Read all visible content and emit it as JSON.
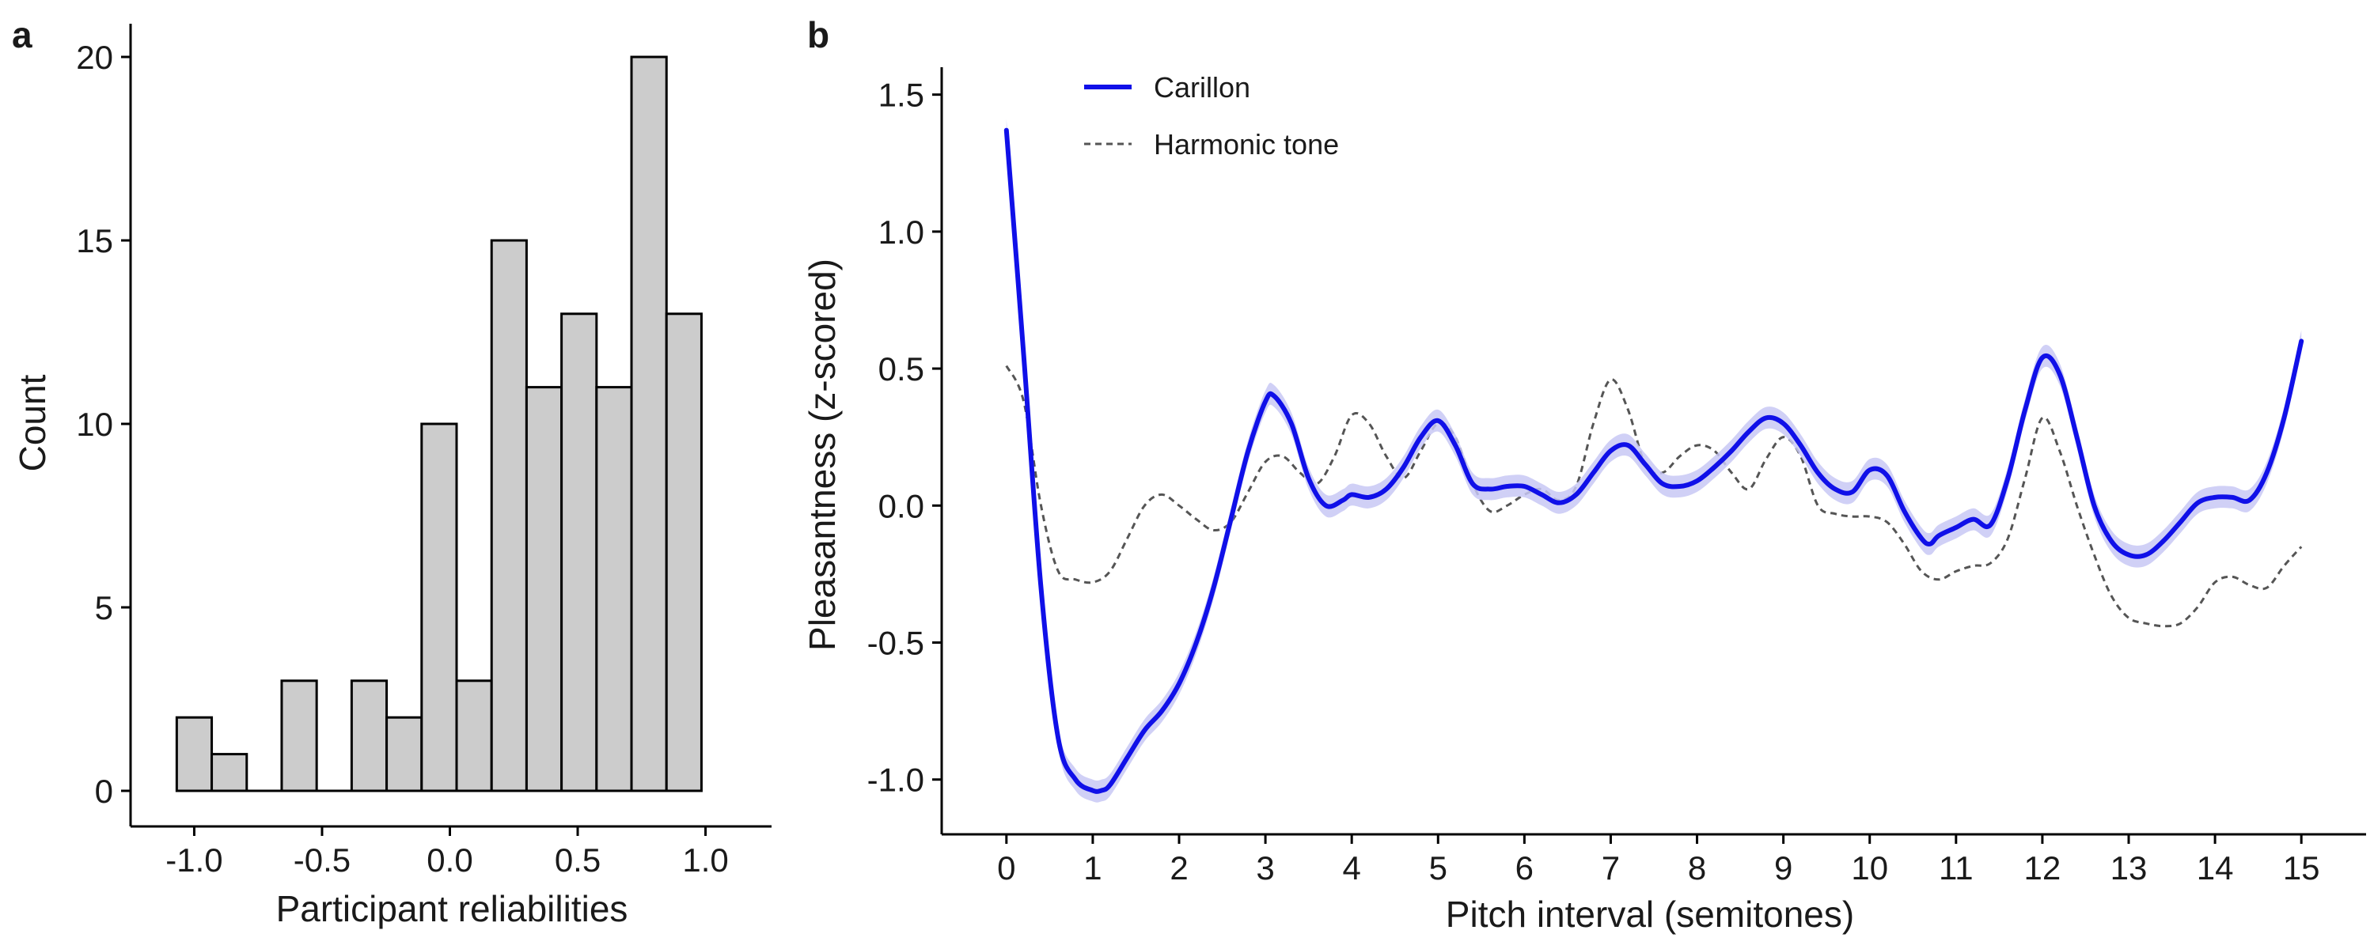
{
  "panel_a": {
    "panel_letter": "a"
  },
  "panel_b": {
    "panel_letter": "b"
  },
  "chart_data": [
    {
      "type": "bar",
      "xlabel": "Participant reliabilities",
      "ylabel": "Count",
      "xlim": [
        -1.15,
        1.15
      ],
      "ylim": [
        0,
        20
      ],
      "xticks": [
        "-1.0",
        "-0.5",
        "0.0",
        "0.5",
        "1.0"
      ],
      "yticks": [
        "0",
        "5",
        "10",
        "15",
        "20"
      ],
      "bin_width": 0.1368,
      "bins": [
        {
          "x_start": -1.0684,
          "x_end": -0.9316,
          "count": 2
        },
        {
          "x_start": -0.9316,
          "x_end": -0.7947,
          "count": 1
        },
        {
          "x_start": -0.7947,
          "x_end": -0.6579,
          "count": 0
        },
        {
          "x_start": -0.6579,
          "x_end": -0.5211,
          "count": 3
        },
        {
          "x_start": -0.5211,
          "x_end": -0.3842,
          "count": 0
        },
        {
          "x_start": -0.3842,
          "x_end": -0.2474,
          "count": 3
        },
        {
          "x_start": -0.2474,
          "x_end": -0.1105,
          "count": 2
        },
        {
          "x_start": -0.1105,
          "x_end": 0.0263,
          "count": 10
        },
        {
          "x_start": 0.0263,
          "x_end": 0.1632,
          "count": 3
        },
        {
          "x_start": 0.1632,
          "x_end": 0.3,
          "count": 15
        },
        {
          "x_start": 0.3,
          "x_end": 0.4368,
          "count": 11
        },
        {
          "x_start": 0.4368,
          "x_end": 0.5737,
          "count": 13
        },
        {
          "x_start": 0.5737,
          "x_end": 0.7105,
          "count": 11
        },
        {
          "x_start": 0.7105,
          "x_end": 0.8474,
          "count": 20
        },
        {
          "x_start": 0.8474,
          "x_end": 0.9842,
          "count": 13
        }
      ],
      "bar_fill": "#cccccc",
      "bar_stroke": "#000000",
      "grid": false
    },
    {
      "type": "line",
      "xlabel": "Pitch interval (semitones)",
      "ylabel": "Pleasantness (z-scored)",
      "xlim": [
        -0.75,
        15.75
      ],
      "ylim": [
        -1.2,
        1.6
      ],
      "xticks": [
        "0",
        "1",
        "2",
        "3",
        "4",
        "5",
        "6",
        "7",
        "8",
        "9",
        "10",
        "11",
        "12",
        "13",
        "14",
        "15"
      ],
      "yticks": [
        "-1.0",
        "-0.5",
        "0.0",
        "0.5",
        "1.0",
        "1.5"
      ],
      "legend_position": "top-left",
      "grid": false,
      "series": [
        {
          "name": "Carillon",
          "color": "#1010e8",
          "band_color": "#c8c8f4",
          "style": "solid",
          "ci_halfwidth": 0.04,
          "x": [
            0,
            0.2,
            0.4,
            0.6,
            0.8,
            1.0,
            1.1,
            1.2,
            1.4,
            1.6,
            1.8,
            2.0,
            2.2,
            2.4,
            2.6,
            2.8,
            3.0,
            3.1,
            3.3,
            3.5,
            3.7,
            3.9,
            4.0,
            4.2,
            4.4,
            4.6,
            4.8,
            5.0,
            5.2,
            5.4,
            5.6,
            5.8,
            6.0,
            6.2,
            6.4,
            6.6,
            6.8,
            7.0,
            7.2,
            7.4,
            7.6,
            7.8,
            8.0,
            8.2,
            8.4,
            8.6,
            8.8,
            9.0,
            9.2,
            9.4,
            9.6,
            9.8,
            10.0,
            10.2,
            10.4,
            10.6,
            10.7,
            10.8,
            11.0,
            11.2,
            11.4,
            11.6,
            11.8,
            12.0,
            12.2,
            12.4,
            12.6,
            12.8,
            13.0,
            13.2,
            13.4,
            13.6,
            13.8,
            14.0,
            14.2,
            14.4,
            14.6,
            14.8,
            15.0
          ],
          "y": [
            1.37,
            0.55,
            -0.3,
            -0.85,
            -1.0,
            -1.04,
            -1.04,
            -1.02,
            -0.92,
            -0.82,
            -0.75,
            -0.65,
            -0.5,
            -0.3,
            -0.05,
            0.2,
            0.38,
            0.4,
            0.3,
            0.1,
            0.0,
            0.02,
            0.04,
            0.03,
            0.06,
            0.14,
            0.25,
            0.31,
            0.22,
            0.08,
            0.06,
            0.07,
            0.07,
            0.04,
            0.01,
            0.04,
            0.12,
            0.2,
            0.22,
            0.15,
            0.08,
            0.07,
            0.09,
            0.14,
            0.2,
            0.27,
            0.32,
            0.3,
            0.22,
            0.12,
            0.06,
            0.05,
            0.13,
            0.11,
            -0.02,
            -0.12,
            -0.14,
            -0.11,
            -0.08,
            -0.05,
            -0.07,
            0.1,
            0.35,
            0.54,
            0.48,
            0.25,
            0.0,
            -0.13,
            -0.18,
            -0.18,
            -0.13,
            -0.06,
            0.01,
            0.03,
            0.03,
            0.02,
            0.12,
            0.32,
            0.6
          ]
        },
        {
          "name": "Harmonic tone",
          "color": "#555555",
          "style": "dashed",
          "x": [
            0,
            0.2,
            0.4,
            0.6,
            0.8,
            1.0,
            1.2,
            1.4,
            1.6,
            1.8,
            2.0,
            2.2,
            2.4,
            2.6,
            2.8,
            3.0,
            3.2,
            3.4,
            3.6,
            3.8,
            4.0,
            4.2,
            4.4,
            4.6,
            4.8,
            5.0,
            5.2,
            5.4,
            5.6,
            5.8,
            6.0,
            6.2,
            6.4,
            6.6,
            6.8,
            7.0,
            7.2,
            7.4,
            7.6,
            7.8,
            8.0,
            8.2,
            8.4,
            8.6,
            8.8,
            9.0,
            9.2,
            9.4,
            9.6,
            9.8,
            10.0,
            10.2,
            10.4,
            10.6,
            10.8,
            11.0,
            11.2,
            11.4,
            11.6,
            11.8,
            12.0,
            12.2,
            12.4,
            12.6,
            12.8,
            13.0,
            13.2,
            13.4,
            13.6,
            13.8,
            14.0,
            14.2,
            14.4,
            14.6,
            14.8,
            15.0
          ],
          "y": [
            0.51,
            0.38,
            0.0,
            -0.24,
            -0.27,
            -0.28,
            -0.24,
            -0.12,
            0.0,
            0.04,
            0.0,
            -0.05,
            -0.09,
            -0.06,
            0.05,
            0.16,
            0.18,
            0.12,
            0.08,
            0.18,
            0.33,
            0.3,
            0.18,
            0.1,
            0.2,
            0.3,
            0.25,
            0.08,
            -0.02,
            0.0,
            0.04,
            0.06,
            0.02,
            0.07,
            0.3,
            0.46,
            0.35,
            0.15,
            0.12,
            0.18,
            0.22,
            0.2,
            0.12,
            0.06,
            0.17,
            0.25,
            0.18,
            0.0,
            -0.03,
            -0.04,
            -0.04,
            -0.06,
            -0.14,
            -0.24,
            -0.27,
            -0.24,
            -0.22,
            -0.21,
            -0.12,
            0.1,
            0.32,
            0.2,
            0.0,
            -0.18,
            -0.33,
            -0.41,
            -0.43,
            -0.44,
            -0.43,
            -0.37,
            -0.28,
            -0.26,
            -0.29,
            -0.3,
            -0.22,
            -0.15
          ]
        }
      ]
    }
  ]
}
